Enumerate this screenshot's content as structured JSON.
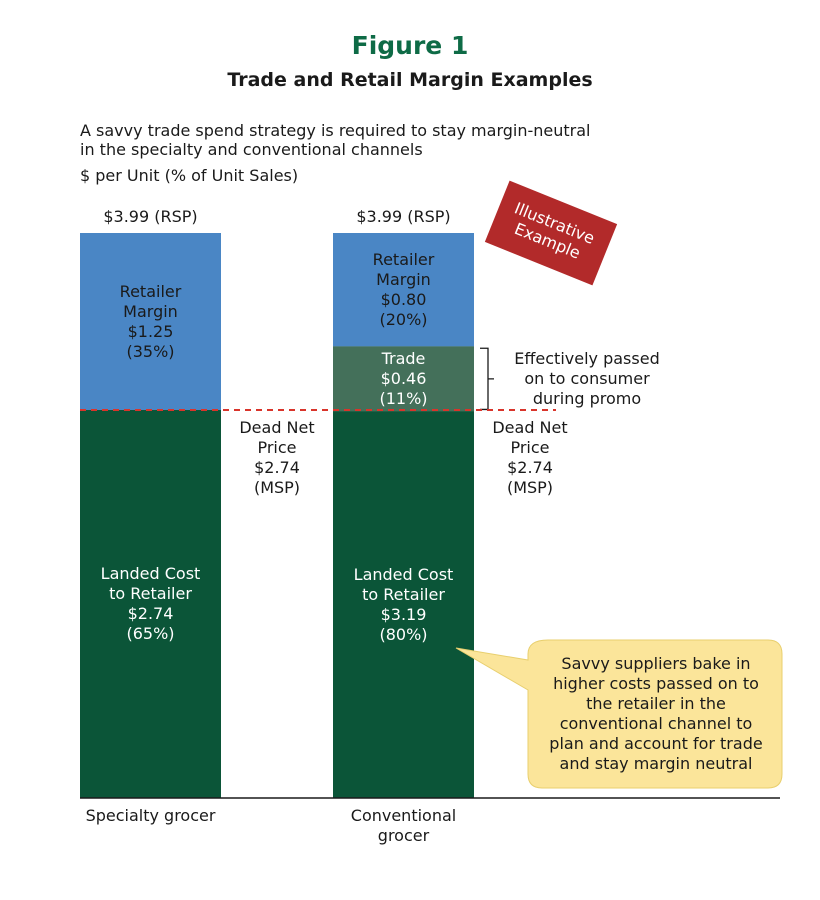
{
  "title": "Figure 1",
  "subtitle": "Trade and Retail Margin Examples",
  "description": [
    "A savvy trade spend strategy is required to stay margin-neutral",
    "in the specialty and conventional channels"
  ],
  "units": "$ per Unit (% of Unit Sales)",
  "stamp": "Illustrative Example",
  "chart_data": {
    "type": "bar",
    "stacked": true,
    "categories": [
      "Specialty grocer",
      "Conventional grocer"
    ],
    "series": [
      {
        "name": "Landed Cost to Retailer",
        "color": "#0b5538",
        "values": [
          2.74,
          3.19
        ],
        "value_labels": [
          "$2.74",
          "$3.19"
        ],
        "shares": [
          65,
          80
        ],
        "share_labels": [
          "(65%)",
          "(80%)"
        ]
      },
      {
        "name": "Trade",
        "color": "#44705a",
        "values": [
          null,
          0.46
        ],
        "value_labels": [
          null,
          "$0.46"
        ],
        "shares": [
          null,
          11
        ],
        "share_labels": [
          null,
          "(11%)"
        ]
      },
      {
        "name": "Retailer Margin",
        "color": "#4a86c5",
        "values": [
          1.25,
          0.8
        ],
        "value_labels": [
          "$1.25",
          "$0.80"
        ],
        "shares": [
          35,
          20
        ],
        "share_labels": [
          "(35%)",
          "(20%)"
        ]
      }
    ],
    "rsp": {
      "values": [
        3.99,
        3.99
      ],
      "value_labels": [
        "$3.99",
        "$3.99"
      ],
      "tag": "(RSP)"
    },
    "dead_net_price": {
      "name": "Dead Net Price",
      "values": [
        2.74,
        2.74
      ],
      "value_labels": [
        "$2.74",
        "$2.74"
      ],
      "tag": "(MSP)",
      "color": "#d9342b"
    },
    "annotations": [
      "Effectively passed on to consumer during promo",
      "Savvy suppliers bake in higher costs passed on to the retailer in the conventional channel to plan and account for trade and stay margin neutral"
    ]
  }
}
